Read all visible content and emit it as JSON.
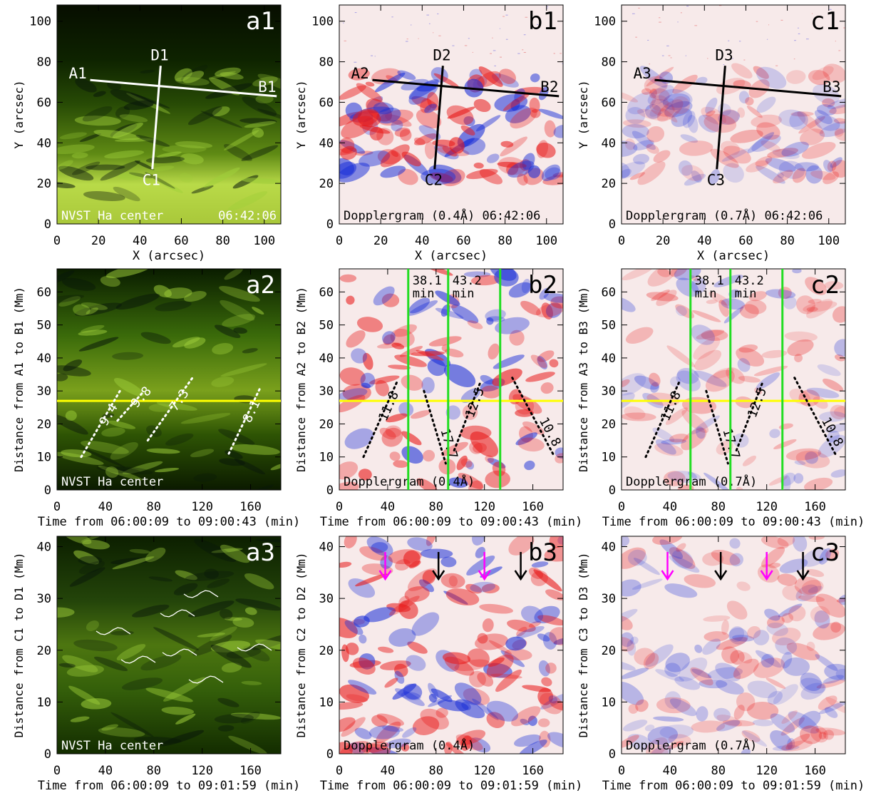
{
  "figure": {
    "rows": [
      {
        "row": 1,
        "x_label": "X (arcsec)",
        "x_ticks": [
          "0",
          "20",
          "40",
          "60",
          "80",
          "100"
        ],
        "y_ticks": [
          "0",
          "20",
          "40",
          "60",
          "80",
          "100"
        ],
        "panels": [
          {
            "id": "a1",
            "kind": "ha",
            "y_label": "Y (arcsec)",
            "footer_left": "NVST Ha center",
            "footer_right": "06:42:06",
            "slits": [
              {
                "a": "A1",
                "b": "B1"
              },
              {
                "a": "D1",
                "b": "C1"
              }
            ]
          },
          {
            "id": "b1",
            "kind": "doppler",
            "y_label": "Y (arcsec)",
            "footer_left": "Dopplergram (0.4Å) 06:42:06",
            "footer_right": "",
            "slits": [
              {
                "a": "A2",
                "b": "B2"
              },
              {
                "a": "D2",
                "b": "C2"
              }
            ]
          },
          {
            "id": "c1",
            "kind": "doppler-weak",
            "y_label": "Y (arcsec)",
            "footer_left": "Dopplergram (0.7Å) 06:42:06",
            "footer_right": "",
            "slits": [
              {
                "a": "A3",
                "b": "B3"
              },
              {
                "a": "D3",
                "b": "C3"
              }
            ]
          }
        ]
      },
      {
        "row": 2,
        "x_label": "Time from 06:00:09 to 09:00:43 (min)",
        "x_ticks": [
          "0",
          "40",
          "80",
          "120",
          "160"
        ],
        "y_ticks": [
          "0",
          "10",
          "20",
          "30",
          "40",
          "50",
          "60"
        ],
        "panels": [
          {
            "id": "a2",
            "kind": "ha",
            "y_label": "Distance from A1 to B1 (Mm)",
            "footer_left": "NVST Ha center",
            "slopes": [
              "9.4",
              "9.8",
              "7.3",
              "8.1"
            ]
          },
          {
            "id": "b2",
            "kind": "doppler",
            "y_label": "Distance from A2 to B2 (Mm)",
            "footer_left": "Dopplergram (0.4Å)",
            "slopes": [
              "11.8",
              "17.7",
              "12.5",
              "10.8"
            ],
            "periods": [
              {
                "value": "38.1",
                "unit": "min"
              },
              {
                "value": "43.2",
                "unit": "min"
              }
            ]
          },
          {
            "id": "c2",
            "kind": "doppler-weak",
            "y_label": "Distance from A3 to B3 (Mm)",
            "footer_left": "Dopplergram (0.7Å)",
            "slopes": [
              "11.8",
              "17.7",
              "12.5",
              "10.8"
            ],
            "periods": [
              {
                "value": "38.1",
                "unit": "min"
              },
              {
                "value": "43.2",
                "unit": "min"
              }
            ]
          }
        ]
      },
      {
        "row": 3,
        "x_label": "Time from 06:00:09 to 09:01:59 (min)",
        "x_ticks": [
          "0",
          "40",
          "80",
          "120",
          "160"
        ],
        "y_ticks": [
          "0",
          "10",
          "20",
          "30",
          "40"
        ],
        "panels": [
          {
            "id": "a3",
            "kind": "ha",
            "y_label": "Distance from C1 to D1 (Mm)",
            "footer_left": "NVST Ha center"
          },
          {
            "id": "b3",
            "kind": "doppler",
            "y_label": "Distance from C2 to D2 (Mm)",
            "footer_left": "Dopplergram (0.4Å)",
            "arrow_times_min": [
              38,
              82,
              120,
              150
            ],
            "arrow_colors": [
              "#ff00ff",
              "#000000",
              "#ff00ff",
              "#000000"
            ]
          },
          {
            "id": "c3",
            "kind": "doppler-weak",
            "y_label": "Distance from C3 to D3 (Mm)",
            "footer_left": "Dopplergram (0.7Å)",
            "arrow_times_min": [
              38,
              82,
              120,
              150
            ],
            "arrow_colors": [
              "#ff00ff",
              "#000000",
              "#ff00ff",
              "#000000"
            ]
          }
        ]
      }
    ],
    "colors": {
      "ha_dark": "#0a1800",
      "ha_mid": "#3f6a08",
      "ha_bright": "#c8e650",
      "slit_light": "#ffffff",
      "slit_dark": "#000000",
      "redshift": "#e81818",
      "blueshift": "#1a2fd8",
      "period_line": "#22dd22",
      "reference_line": "#ffff00"
    }
  }
}
